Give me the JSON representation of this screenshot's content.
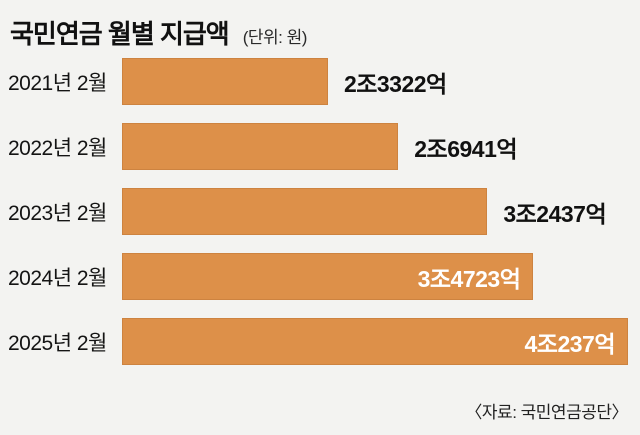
{
  "header": {
    "title": "국민연금 월별 지급액",
    "unit_label": "(단위: 원)"
  },
  "footer": {
    "source": "〈자료: 국민연금공단〉"
  },
  "colors": {
    "background": "#f3f3f1",
    "bar": "#dd9049",
    "bar_border": "#cd8340",
    "text": "#111111",
    "value_inside_text": "#ffffff"
  },
  "chart_data": {
    "type": "bar",
    "orientation": "horizontal",
    "title": "국민연금 월별 지급액",
    "unit": "원",
    "unit_label": "(단위: 원)",
    "source": "〈자료: 국민연금공단〉",
    "categories": [
      "2021년 2월",
      "2022년 2월",
      "2023년 2월",
      "2024년 2월",
      "2025년 2월"
    ],
    "series": [
      {
        "name": "월별 지급액",
        "values_in_100m_won": [
          23322,
          26941,
          32437,
          34723,
          40237
        ]
      }
    ],
    "value_labels": [
      "2조3322억",
      "2조6941억",
      "3조2437억",
      "3조4723억",
      "4조237억"
    ],
    "value_label_placement": [
      "outside",
      "outside",
      "outside",
      "inside",
      "inside"
    ],
    "bar_width_pct": [
      40.7,
      54.6,
      72.2,
      81.3,
      100
    ],
    "bar_color": "#dd9049",
    "legend": false,
    "axes_hidden": true,
    "grid": false
  }
}
